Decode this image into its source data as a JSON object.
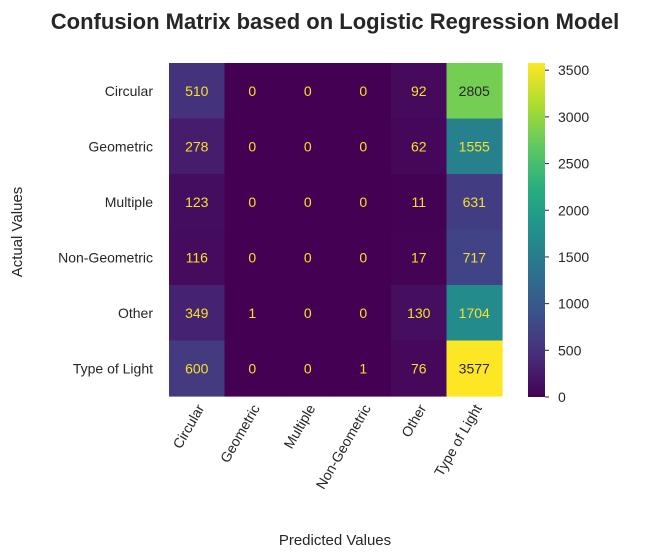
{
  "chart_data": {
    "type": "heatmap",
    "title": "Confusion Matrix based on Logistic Regression Model",
    "xlabel": "Predicted Values",
    "ylabel": "Actual Values",
    "x_categories": [
      "Circular",
      "Geometric",
      "Multiple",
      "Non-Geometric",
      "Other",
      "Type of Light"
    ],
    "y_categories": [
      "Circular",
      "Geometric",
      "Multiple",
      "Non-Geometric",
      "Other",
      "Type of Light"
    ],
    "values": [
      [
        510,
        0,
        0,
        0,
        92,
        2805
      ],
      [
        278,
        0,
        0,
        0,
        62,
        1555
      ],
      [
        123,
        0,
        0,
        0,
        11,
        631
      ],
      [
        116,
        0,
        0,
        0,
        17,
        717
      ],
      [
        349,
        1,
        0,
        0,
        130,
        1704
      ],
      [
        600,
        0,
        0,
        1,
        76,
        3577
      ]
    ],
    "colormap": "viridis",
    "vmin": 0,
    "vmax": 3577,
    "colorbar_ticks": [
      0,
      500,
      1000,
      1500,
      2000,
      2500,
      3000,
      3500
    ],
    "x_tick_rotation": "60 degrees",
    "annotation_color_light_cells": "#262626",
    "annotation_color_dark_cells": "#f5e12a"
  }
}
